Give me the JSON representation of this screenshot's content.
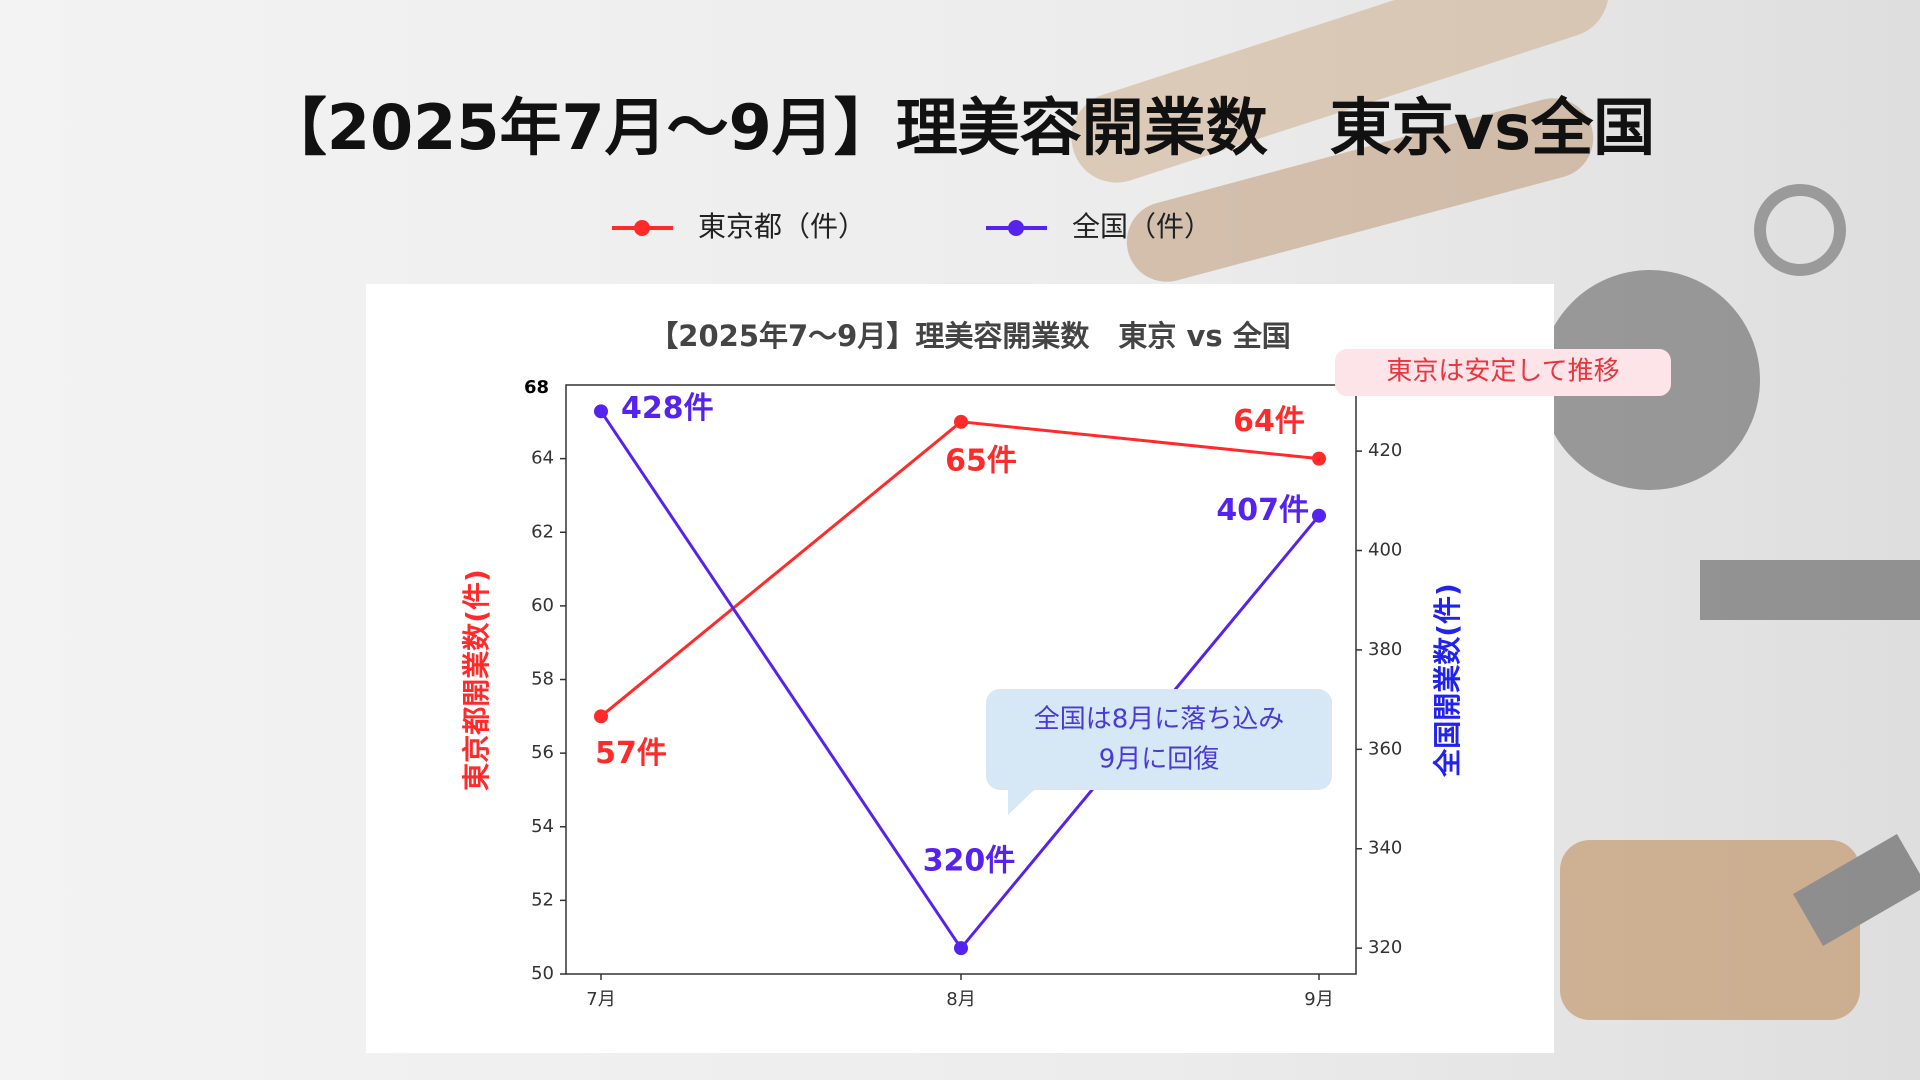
{
  "chart_data": {
    "type": "line",
    "title": "【2025年7月～9月】理美容開業数　東京vs全国",
    "subtitle": "【2025年7～9月】理美容開業数　東京 vs 全国",
    "categories": [
      "7月",
      "8月",
      "9月"
    ],
    "series": [
      {
        "name": "東京都（件）",
        "color": "#ff2a2a",
        "values": [
          57,
          65,
          64
        ],
        "value_labels": [
          "57件",
          "65件",
          "64件"
        ]
      },
      {
        "name": "全国（件）",
        "color": "#5522ee",
        "values": [
          428,
          320,
          407
        ],
        "value_labels": [
          "428件",
          "320件",
          "407件"
        ],
        "axis": "y2"
      }
    ],
    "ylabel": "東京都開業数(件)",
    "y2label": "全国開業数(件)",
    "ylim": [
      50,
      66
    ],
    "yticks": [
      50,
      52,
      54,
      56,
      58,
      60,
      62,
      64
    ],
    "y_top_label": "68",
    "y2lim": [
      314.8,
      433.3
    ],
    "y2ticks": [
      320,
      340,
      360,
      380,
      400,
      420
    ],
    "annotations": [
      "東京は安定して推移",
      "全国は8月に落ち込み",
      "9月に回復"
    ],
    "grid": false
  }
}
